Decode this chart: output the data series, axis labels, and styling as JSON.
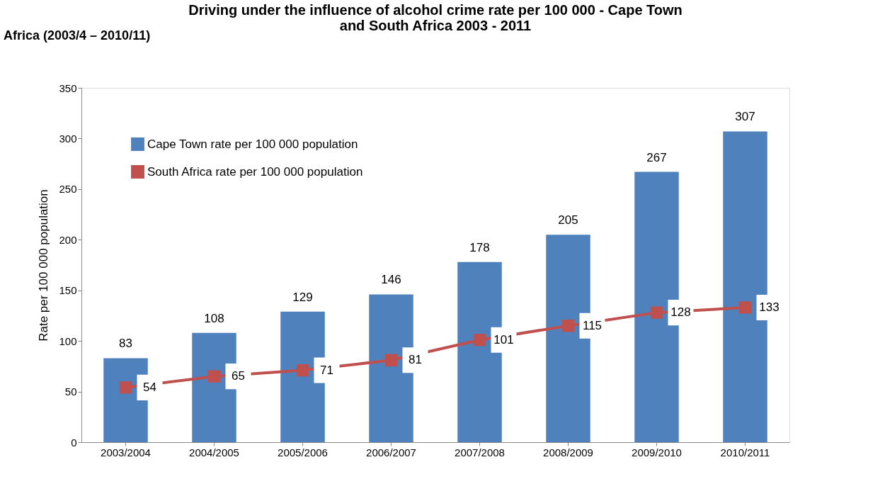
{
  "chart_data": {
    "type": "bar",
    "title": "Driving under the influence of alcohol crime rate per 100 000 - Cape Town and South Africa 2003 - 2011",
    "ylabel": "Rate per 100 000 population",
    "annotations": [
      "Africa (2003/4 – 2010/11)"
    ],
    "categories": [
      "2003/2004",
      "2004/2005",
      "2005/2006",
      "2006/2007",
      "2007/2008",
      "2008/2009",
      "2009/2010",
      "2010/2011"
    ],
    "series": [
      {
        "name": "Cape Town rate per 100 000 population",
        "color": "#4f81bd",
        "values": [
          83,
          108,
          129,
          146,
          178,
          205,
          267,
          307
        ]
      },
      {
        "name": "South Africa rate per 100 000 population",
        "type": "line",
        "color": "#c0504d",
        "marker": "square",
        "values": [
          54,
          65,
          71,
          81,
          101,
          115,
          128,
          133
        ]
      }
    ],
    "ylim": [
      0,
      350
    ],
    "yticks": [
      0,
      50,
      100,
      150,
      200,
      250,
      300,
      350
    ],
    "data_labels": true,
    "legend": "top left",
    "grid": false
  }
}
